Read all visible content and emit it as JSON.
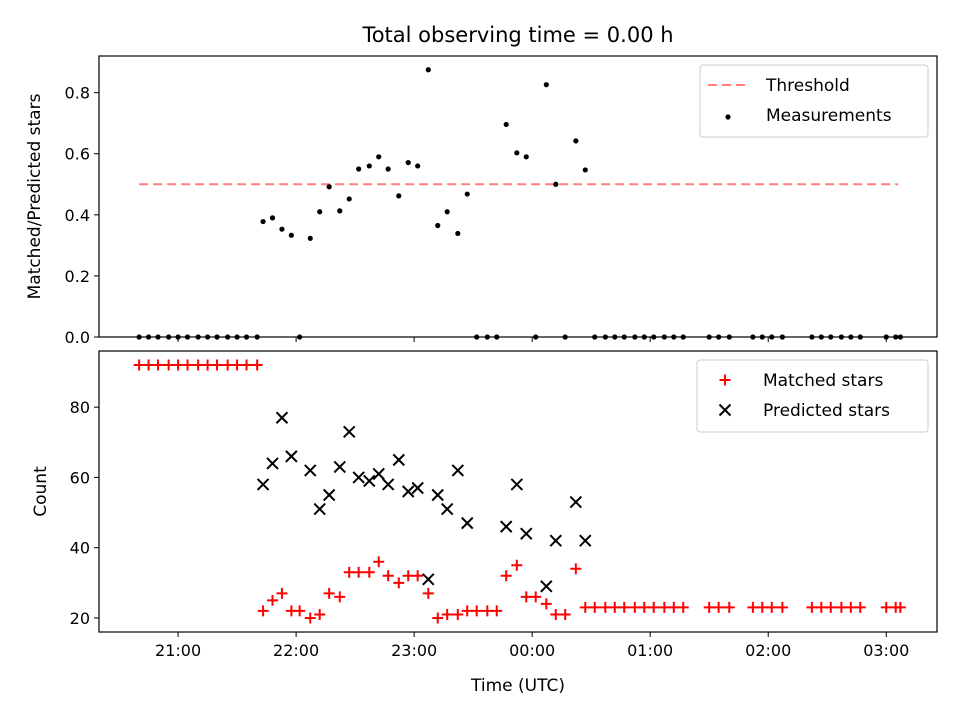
{
  "title": "Total observing time = 0.00 h",
  "x_axis": {
    "label": "Time (UTC)",
    "ticks": [
      {
        "x": 21.0,
        "label": "21:00"
      },
      {
        "x": 22.0,
        "label": "22:00"
      },
      {
        "x": 23.0,
        "label": "23:00"
      },
      {
        "x": 24.0,
        "label": "00:00"
      },
      {
        "x": 25.0,
        "label": "01:00"
      },
      {
        "x": 26.0,
        "label": "02:00"
      },
      {
        "x": 27.0,
        "label": "03:00"
      }
    ],
    "xlim": [
      20.33,
      27.43
    ]
  },
  "chart_data": [
    {
      "type": "scatter",
      "ylabel": "Matched/Predicted stars",
      "ylim": [
        0,
        0.92
      ],
      "yticks": [
        "0.0",
        "0.2",
        "0.4",
        "0.6",
        "0.8"
      ],
      "ytick_values": [
        0,
        0.2,
        0.4,
        0.6,
        0.8
      ],
      "legend_position": "top-right",
      "series": [
        {
          "name": "Threshold",
          "kind": "dashed-line",
          "color": "#ff7f7f",
          "x": [
            20.67,
            27.1
          ],
          "y": [
            0.5,
            0.5
          ]
        },
        {
          "name": "Measurements",
          "kind": "points",
          "color": "#000000",
          "points": [
            [
              20.67,
              0
            ],
            [
              20.75,
              0
            ],
            [
              20.83,
              0
            ],
            [
              20.92,
              0
            ],
            [
              21.0,
              0
            ],
            [
              21.08,
              0
            ],
            [
              21.17,
              0
            ],
            [
              21.25,
              0
            ],
            [
              21.33,
              0
            ],
            [
              21.42,
              0
            ],
            [
              21.5,
              0
            ],
            [
              21.58,
              0
            ],
            [
              21.67,
              0
            ],
            [
              21.72,
              0.378
            ],
            [
              21.8,
              0.39
            ],
            [
              21.88,
              0.353
            ],
            [
              21.96,
              0.333
            ],
            [
              22.03,
              0
            ],
            [
              22.12,
              0.323
            ],
            [
              22.2,
              0.41
            ],
            [
              22.28,
              0.492
            ],
            [
              22.37,
              0.413
            ],
            [
              22.45,
              0.452
            ],
            [
              22.53,
              0.55
            ],
            [
              22.62,
              0.56
            ],
            [
              22.7,
              0.59
            ],
            [
              22.78,
              0.55
            ],
            [
              22.87,
              0.462
            ],
            [
              22.95,
              0.571
            ],
            [
              23.03,
              0.56
            ],
            [
              23.12,
              0.875
            ],
            [
              23.2,
              0.365
            ],
            [
              23.28,
              0.41
            ],
            [
              23.37,
              0.339
            ],
            [
              23.45,
              0.468
            ],
            [
              23.53,
              0
            ],
            [
              23.62,
              0
            ],
            [
              23.7,
              0
            ],
            [
              23.78,
              0.696
            ],
            [
              23.87,
              0.603
            ],
            [
              23.95,
              0.59
            ],
            [
              24.03,
              0
            ],
            [
              24.12,
              0.826
            ],
            [
              24.2,
              0.5
            ],
            [
              24.28,
              0
            ],
            [
              24.37,
              0.642
            ],
            [
              24.45,
              0.547
            ],
            [
              24.53,
              0
            ],
            [
              24.62,
              0
            ],
            [
              24.7,
              0
            ],
            [
              24.78,
              0
            ],
            [
              24.87,
              0
            ],
            [
              24.95,
              0
            ],
            [
              25.03,
              0
            ],
            [
              25.12,
              0
            ],
            [
              25.2,
              0
            ],
            [
              25.28,
              0
            ],
            [
              25.5,
              0
            ],
            [
              25.58,
              0
            ],
            [
              25.67,
              0
            ],
            [
              25.87,
              0
            ],
            [
              25.95,
              0
            ],
            [
              26.03,
              0
            ],
            [
              26.12,
              0
            ],
            [
              26.37,
              0
            ],
            [
              26.45,
              0
            ],
            [
              26.53,
              0
            ],
            [
              26.62,
              0
            ],
            [
              26.7,
              0
            ],
            [
              26.78,
              0
            ],
            [
              27.0,
              0
            ],
            [
              27.08,
              0
            ],
            [
              27.12,
              0
            ]
          ]
        }
      ]
    },
    {
      "type": "scatter",
      "ylabel": "Count",
      "ylim": [
        16,
        96
      ],
      "yticks": [
        "20",
        "40",
        "60",
        "80"
      ],
      "ytick_values": [
        20,
        40,
        60,
        80
      ],
      "legend_position": "top-right",
      "series": [
        {
          "name": "Matched stars",
          "marker": "+",
          "color": "#ff0000",
          "points": [
            [
              20.67,
              92
            ],
            [
              20.75,
              92
            ],
            [
              20.83,
              92
            ],
            [
              20.92,
              92
            ],
            [
              21.0,
              92
            ],
            [
              21.08,
              92
            ],
            [
              21.17,
              92
            ],
            [
              21.25,
              92
            ],
            [
              21.33,
              92
            ],
            [
              21.42,
              92
            ],
            [
              21.5,
              92
            ],
            [
              21.58,
              92
            ],
            [
              21.67,
              92
            ],
            [
              21.72,
              22
            ],
            [
              21.8,
              25
            ],
            [
              21.88,
              27
            ],
            [
              21.96,
              22
            ],
            [
              22.03,
              22
            ],
            [
              22.12,
              20
            ],
            [
              22.2,
              21
            ],
            [
              22.28,
              27
            ],
            [
              22.37,
              26
            ],
            [
              22.45,
              33
            ],
            [
              22.53,
              33
            ],
            [
              22.62,
              33
            ],
            [
              22.7,
              36
            ],
            [
              22.78,
              32
            ],
            [
              22.87,
              30
            ],
            [
              22.95,
              32
            ],
            [
              23.03,
              32
            ],
            [
              23.12,
              27
            ],
            [
              23.2,
              20
            ],
            [
              23.28,
              21
            ],
            [
              23.37,
              21
            ],
            [
              23.45,
              22
            ],
            [
              23.53,
              22
            ],
            [
              23.62,
              22
            ],
            [
              23.7,
              22
            ],
            [
              23.78,
              32
            ],
            [
              23.87,
              35
            ],
            [
              23.95,
              26
            ],
            [
              24.03,
              26
            ],
            [
              24.12,
              24
            ],
            [
              24.2,
              21
            ],
            [
              24.28,
              21
            ],
            [
              24.37,
              34
            ],
            [
              24.45,
              23
            ],
            [
              24.53,
              23
            ],
            [
              24.62,
              23
            ],
            [
              24.7,
              23
            ],
            [
              24.78,
              23
            ],
            [
              24.87,
              23
            ],
            [
              24.95,
              23
            ],
            [
              25.03,
              23
            ],
            [
              25.12,
              23
            ],
            [
              25.2,
              23
            ],
            [
              25.28,
              23
            ],
            [
              25.5,
              23
            ],
            [
              25.58,
              23
            ],
            [
              25.67,
              23
            ],
            [
              25.87,
              23
            ],
            [
              25.95,
              23
            ],
            [
              26.03,
              23
            ],
            [
              26.12,
              23
            ],
            [
              26.37,
              23
            ],
            [
              26.45,
              23
            ],
            [
              26.53,
              23
            ],
            [
              26.62,
              23
            ],
            [
              26.7,
              23
            ],
            [
              26.78,
              23
            ],
            [
              27.0,
              23
            ],
            [
              27.08,
              23
            ],
            [
              27.12,
              23
            ]
          ]
        },
        {
          "name": "Predicted stars",
          "marker": "x",
          "color": "#000000",
          "points": [
            [
              21.72,
              58
            ],
            [
              21.8,
              64
            ],
            [
              21.88,
              77
            ],
            [
              21.96,
              66
            ],
            [
              22.12,
              62
            ],
            [
              22.2,
              51
            ],
            [
              22.28,
              55
            ],
            [
              22.37,
              63
            ],
            [
              22.45,
              73
            ],
            [
              22.53,
              60
            ],
            [
              22.62,
              59
            ],
            [
              22.7,
              61
            ],
            [
              22.78,
              58
            ],
            [
              22.87,
              65
            ],
            [
              22.95,
              56
            ],
            [
              23.03,
              57
            ],
            [
              23.12,
              31
            ],
            [
              23.2,
              55
            ],
            [
              23.28,
              51
            ],
            [
              23.37,
              62
            ],
            [
              23.45,
              47
            ],
            [
              23.78,
              46
            ],
            [
              23.87,
              58
            ],
            [
              23.95,
              44
            ],
            [
              24.12,
              29
            ],
            [
              24.2,
              42
            ],
            [
              24.37,
              53
            ],
            [
              24.45,
              42
            ]
          ]
        }
      ]
    }
  ]
}
